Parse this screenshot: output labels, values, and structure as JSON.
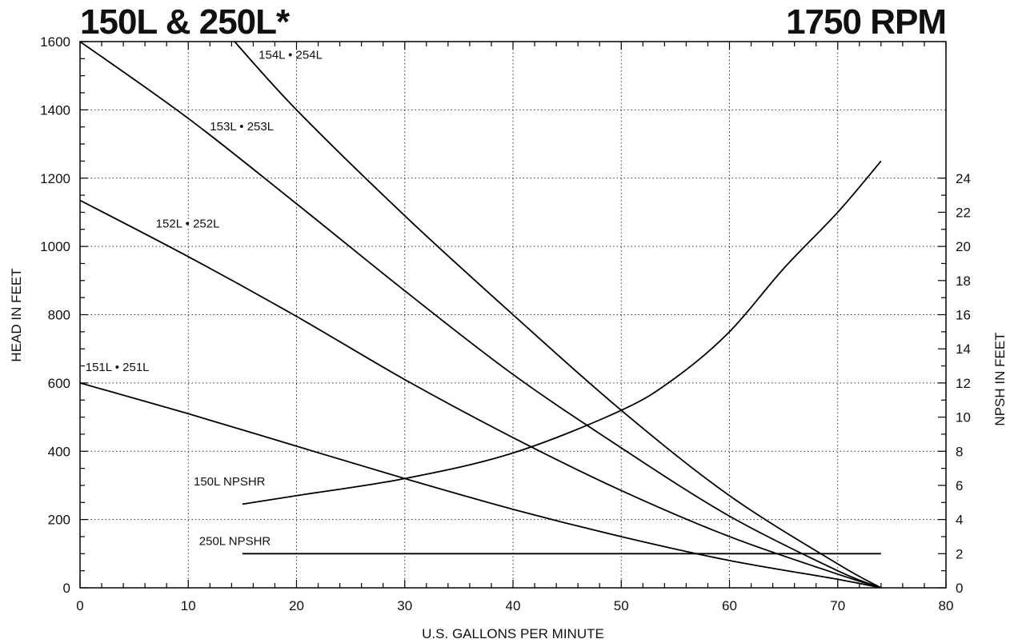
{
  "chart_data": {
    "type": "line",
    "title_left": "150L & 250L*",
    "title_right": "1750 RPM",
    "xlabel": "U.S. GALLONS PER MINUTE",
    "ylabel": "HEAD IN FEET",
    "y2label": "NPSH IN FEET",
    "xlim": [
      0,
      80
    ],
    "ylim": [
      0,
      1600
    ],
    "y2lim": [
      0,
      32
    ],
    "grid": true,
    "x_ticks": [
      0,
      10,
      20,
      30,
      40,
      50,
      60,
      70,
      80
    ],
    "y_ticks": [
      0,
      200,
      400,
      600,
      800,
      1000,
      1200,
      1400,
      1600
    ],
    "y2_ticks": [
      0,
      2,
      4,
      6,
      8,
      10,
      12,
      14,
      16,
      18,
      20,
      22,
      24
    ],
    "series": [
      {
        "name": "151L • 251L",
        "axis": "left",
        "x": [
          0,
          10,
          20,
          30,
          40,
          50,
          60,
          70,
          74
        ],
        "y": [
          600,
          510,
          415,
          320,
          230,
          150,
          80,
          25,
          0
        ],
        "label_pos": [
          0.5,
          635
        ]
      },
      {
        "name": "152L • 252L",
        "axis": "left",
        "x": [
          0,
          10,
          20,
          30,
          40,
          50,
          60,
          70,
          74
        ],
        "y": [
          1135,
          970,
          795,
          610,
          440,
          285,
          150,
          40,
          0
        ],
        "label_pos": [
          7,
          1055
        ]
      },
      {
        "name": "153L • 253L",
        "axis": "left",
        "x": [
          0,
          10,
          20,
          30,
          40,
          50,
          60,
          70,
          74
        ],
        "y": [
          1600,
          1375,
          1125,
          870,
          625,
          410,
          210,
          50,
          0
        ],
        "label_pos": [
          12,
          1340
        ]
      },
      {
        "name": "154L • 254L",
        "axis": "left",
        "x": [
          14,
          20,
          30,
          40,
          50,
          60,
          70,
          74
        ],
        "y": [
          1610,
          1400,
          1090,
          800,
          520,
          270,
          70,
          0
        ],
        "label_pos": [
          16.5,
          1550
        ]
      },
      {
        "name": "150L NPSHR",
        "axis": "right",
        "x": [
          15,
          20,
          30,
          40,
          50,
          55,
          60,
          65,
          70,
          74
        ],
        "y": [
          4.9,
          5.4,
          6.4,
          7.9,
          10.4,
          12.3,
          15,
          18.7,
          22,
          25
        ],
        "label_pos": [
          10.5,
          6.0
        ]
      },
      {
        "name": "250L NPSHR",
        "axis": "right",
        "x": [
          15,
          74
        ],
        "y": [
          2,
          2
        ],
        "label_pos": [
          11,
          2.5
        ]
      }
    ]
  }
}
